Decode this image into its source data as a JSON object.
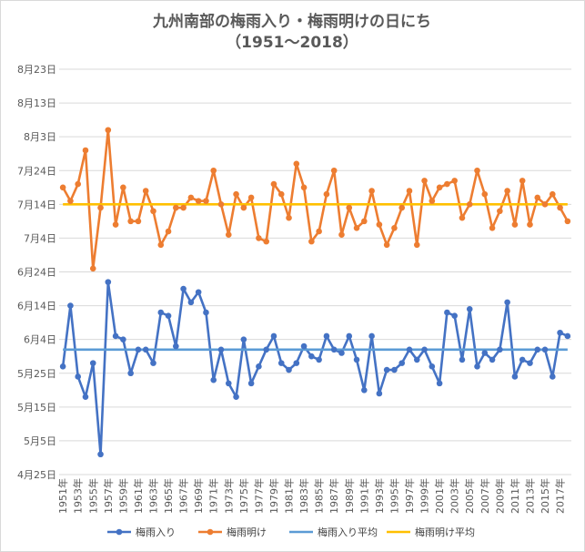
{
  "chart_data": {
    "type": "line",
    "title": "九州南部の梅雨入り・梅雨明けの日にち",
    "subtitle": "（1951～2018）",
    "y_tick_labels": [
      "4月25日",
      "5月5日",
      "5月15日",
      "5月25日",
      "6月4日",
      "6月14日",
      "6月24日",
      "7月4日",
      "7月14日",
      "7月24日",
      "8月3日",
      "8月13日",
      "8月23日"
    ],
    "y_axis_note": "values are day-of-year offsets from 4月25日 (0 = 4月25日, 120 = 8月23日)",
    "ylim": [
      0,
      120
    ],
    "x": [
      1951,
      1952,
      1953,
      1954,
      1955,
      1956,
      1957,
      1958,
      1959,
      1960,
      1961,
      1962,
      1963,
      1964,
      1965,
      1966,
      1967,
      1968,
      1969,
      1970,
      1971,
      1972,
      1973,
      1974,
      1975,
      1976,
      1977,
      1978,
      1979,
      1980,
      1981,
      1982,
      1983,
      1984,
      1985,
      1986,
      1987,
      1988,
      1989,
      1990,
      1991,
      1992,
      1993,
      1994,
      1995,
      1996,
      1997,
      1998,
      1999,
      2000,
      2001,
      2002,
      2003,
      2004,
      2005,
      2006,
      2007,
      2008,
      2009,
      2010,
      2011,
      2012,
      2013,
      2014,
      2015,
      2016,
      2017,
      2018
    ],
    "x_tick_labels": [
      "1951年",
      "1953年",
      "1955年",
      "1957年",
      "1959年",
      "1961年",
      "1963年",
      "1965年",
      "1967年",
      "1969年",
      "1971年",
      "1973年",
      "1975年",
      "1977年",
      "1979年",
      "1981年",
      "1983年",
      "1985年",
      "1987年",
      "1989年",
      "1991年",
      "1993年",
      "1995年",
      "1997年",
      "1999年",
      "2001年",
      "2003年",
      "2005年",
      "2007年",
      "2009年",
      "2011年",
      "2013年",
      "2015年",
      "2017年"
    ],
    "series": [
      {
        "name": "梅雨入り",
        "color": "#4472C4",
        "marker": "circle",
        "values": [
          32,
          50,
          29,
          23,
          33,
          6,
          57,
          41,
          40,
          30,
          37,
          37,
          33,
          48,
          47,
          38,
          55,
          51,
          54,
          48,
          28,
          37,
          27,
          23,
          40,
          27,
          32,
          37,
          41,
          33,
          31,
          33,
          38,
          35,
          34,
          41,
          37,
          36,
          41,
          34,
          25,
          41,
          24,
          31,
          31,
          33,
          37,
          34,
          37,
          32,
          27,
          48,
          47,
          34,
          49,
          32,
          36,
          34,
          37,
          51,
          29,
          34,
          33,
          37,
          37,
          29,
          42,
          41
        ]
      },
      {
        "name": "梅雨明け",
        "color": "#ED7D31",
        "marker": "circle",
        "values": [
          85,
          81,
          86,
          96,
          61,
          79,
          102,
          74,
          85,
          75,
          75,
          84,
          78,
          68,
          72,
          79,
          79,
          82,
          81,
          81,
          90,
          80,
          71,
          83,
          79,
          82,
          70,
          69,
          86,
          83,
          76,
          92,
          85,
          69,
          72,
          83,
          90,
          71,
          79,
          73,
          75,
          84,
          74,
          68,
          73,
          79,
          84,
          68,
          87,
          81,
          85,
          86,
          87,
          76,
          80,
          90,
          83,
          73,
          78,
          84,
          74,
          87,
          74,
          82,
          80,
          83,
          79,
          75
        ]
      },
      {
        "name": "梅雨入り平均",
        "color": "#5B9BD5",
        "marker": "none",
        "constant": 37
      },
      {
        "name": "梅雨明け平均",
        "color": "#FFC000",
        "marker": "none",
        "constant": 80
      }
    ],
    "grid": true,
    "legend_position": "bottom"
  }
}
